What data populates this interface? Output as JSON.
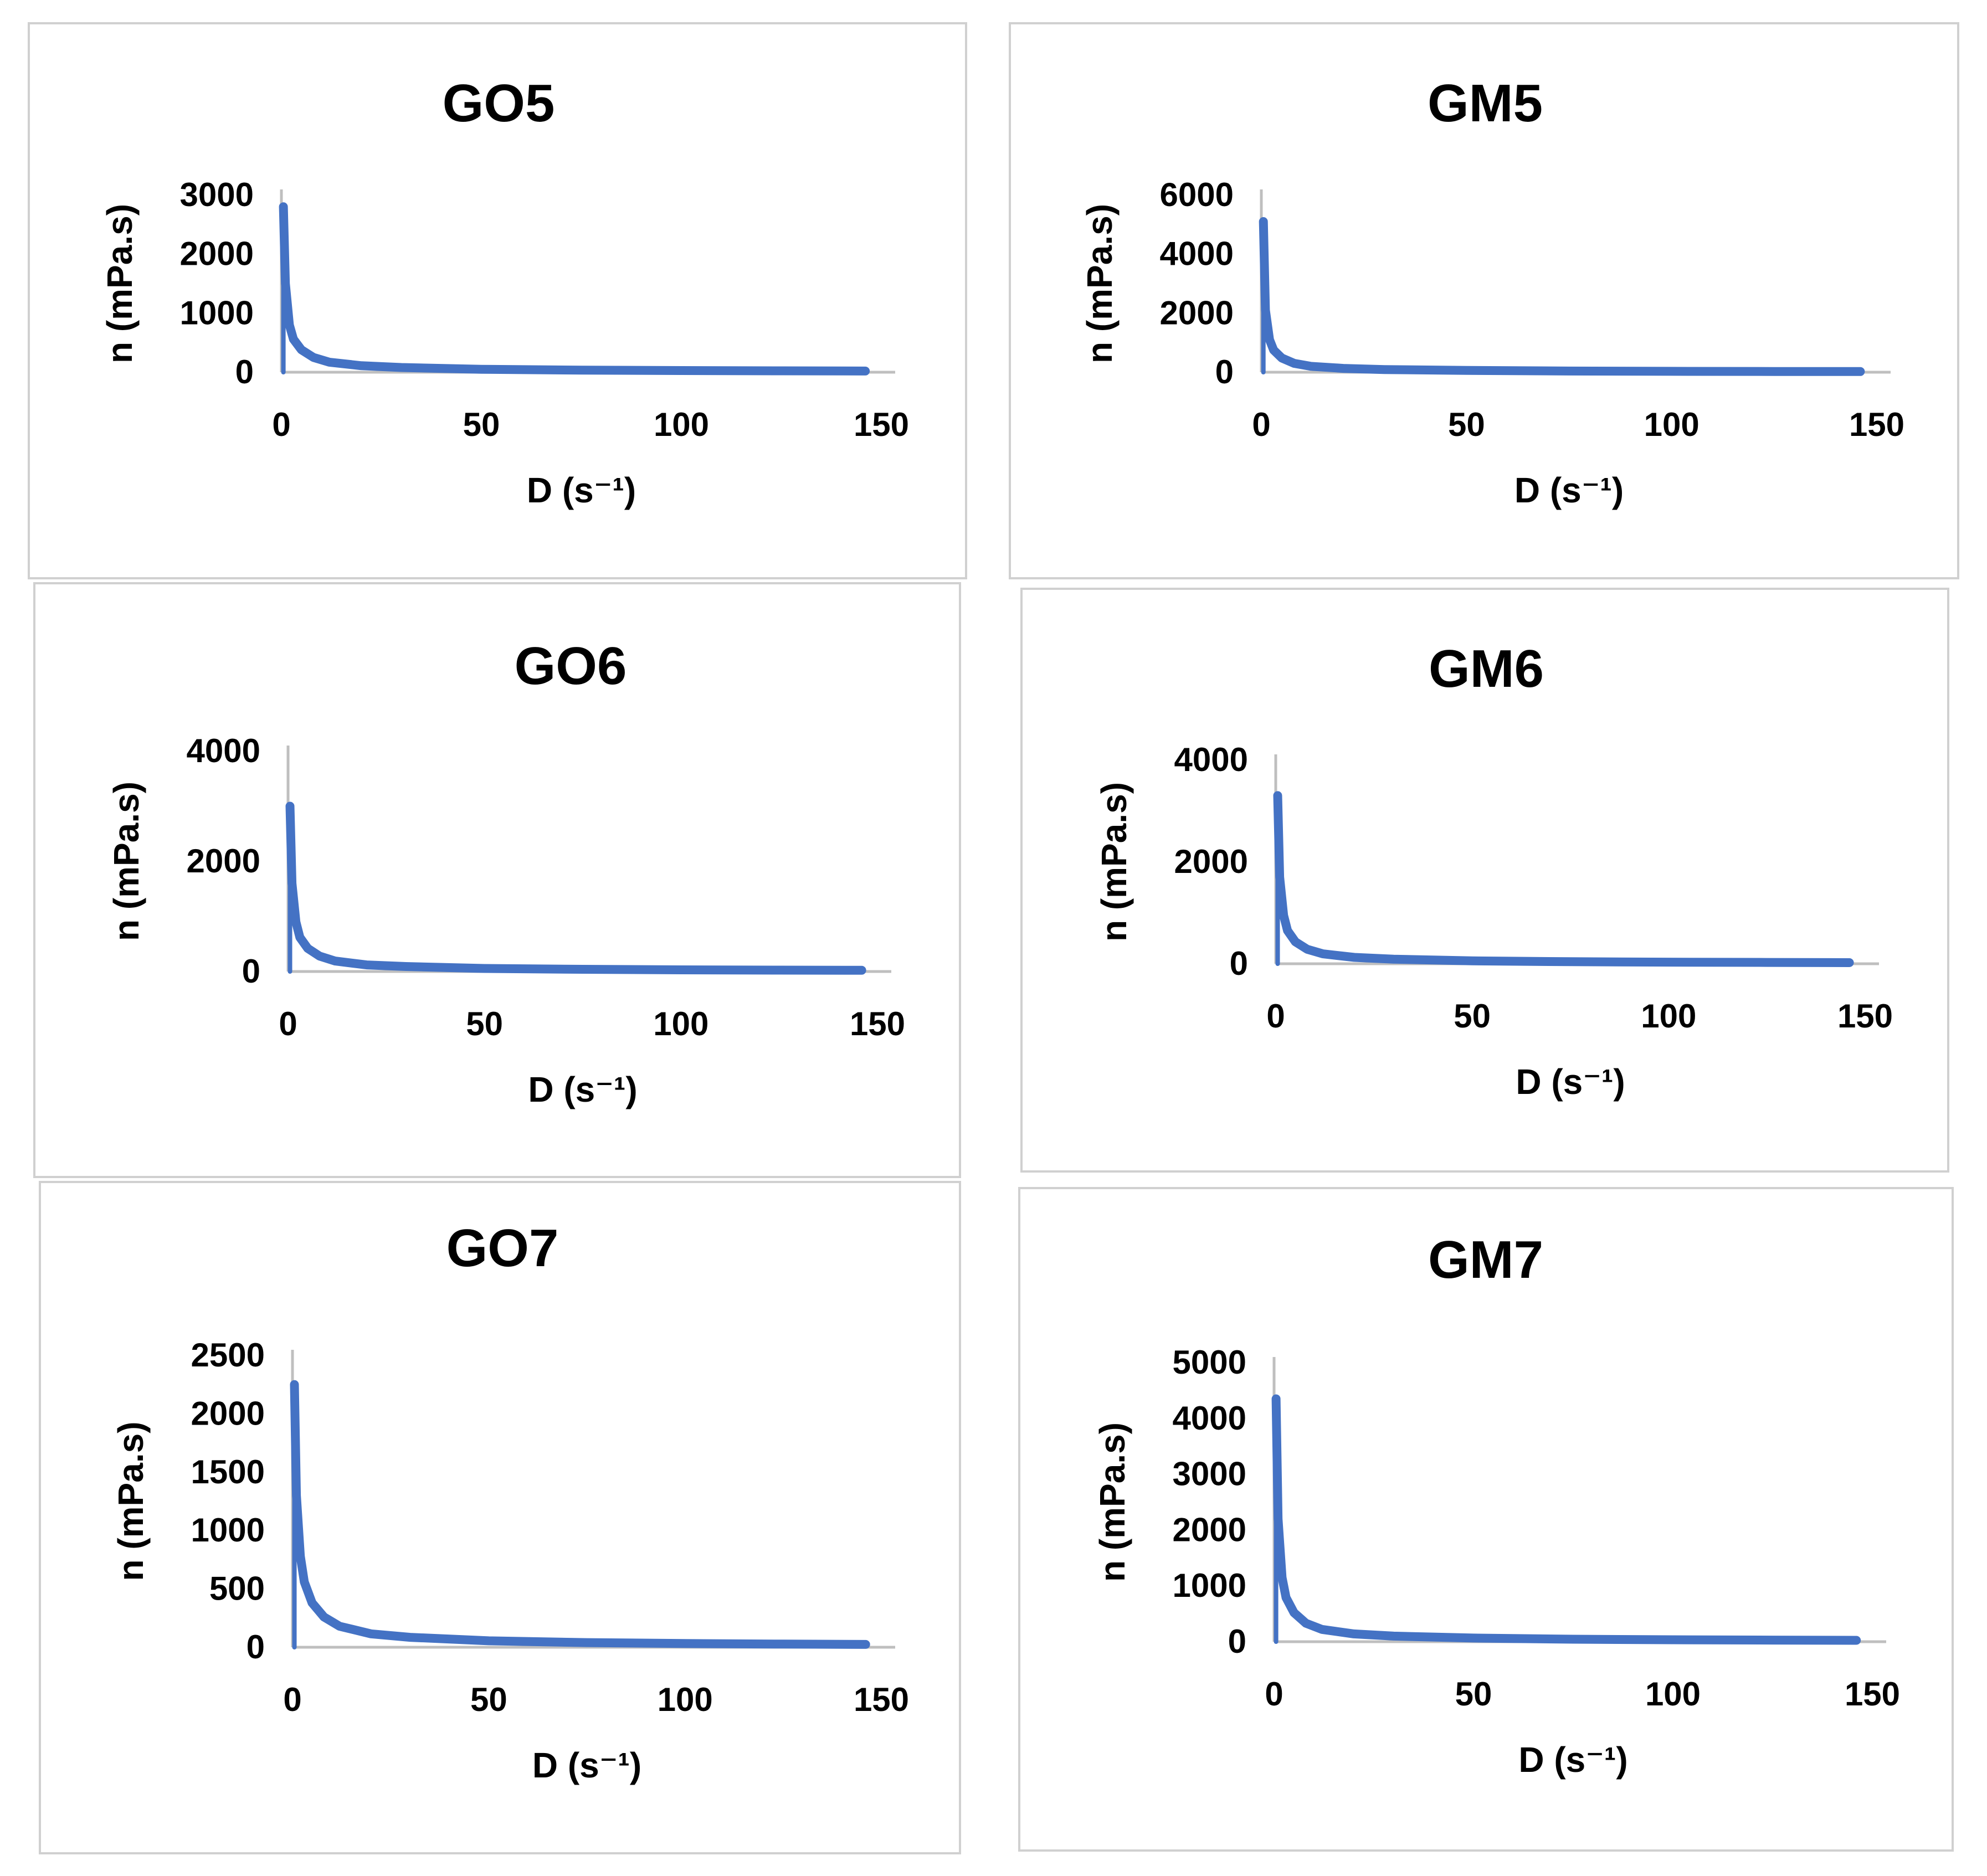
{
  "series_color": "#4472c4",
  "chart_data": [
    {
      "type": "line",
      "title": "GO5",
      "xlabel": "D (s⁻¹)",
      "ylabel": "n (mPa.s)",
      "xlim": [
        0,
        150
      ],
      "ylim": [
        0,
        3000
      ],
      "x_ticks": [
        "0",
        "50",
        "100",
        "150"
      ],
      "y_ticks": [
        "0",
        "1000",
        "2000",
        "3000"
      ],
      "x": [
        0.5,
        1,
        2,
        3,
        5,
        8,
        12,
        20,
        30,
        50,
        75,
        100,
        125,
        146
      ],
      "y": [
        2800,
        1500,
        800,
        560,
        380,
        250,
        170,
        110,
        80,
        50,
        35,
        28,
        23,
        20
      ]
    },
    {
      "type": "line",
      "title": "GM5",
      "xlabel": "D (s⁻¹)",
      "ylabel": "n (mPa.s)",
      "xlim": [
        0,
        150
      ],
      "ylim": [
        0,
        6000
      ],
      "x_ticks": [
        "0",
        "50",
        "100",
        "150"
      ],
      "y_ticks": [
        "0",
        "2000",
        "4000",
        "6000"
      ],
      "x": [
        0.5,
        1,
        2,
        3,
        5,
        8,
        12,
        20,
        30,
        50,
        75,
        100,
        125,
        146
      ],
      "y": [
        5100,
        2100,
        1100,
        750,
        480,
        300,
        200,
        130,
        90,
        60,
        40,
        30,
        25,
        22
      ]
    },
    {
      "type": "line",
      "title": "GO6",
      "xlabel": "D (s⁻¹)",
      "ylabel": "n (mPa.s)",
      "xlim": [
        0,
        150
      ],
      "ylim": [
        0,
        4000
      ],
      "x_ticks": [
        "0",
        "50",
        "100",
        "150"
      ],
      "y_ticks": [
        "0",
        "2000",
        "4000"
      ],
      "x": [
        0.5,
        1,
        2,
        3,
        5,
        8,
        12,
        20,
        30,
        50,
        75,
        100,
        125,
        146
      ],
      "y": [
        3000,
        1600,
        900,
        620,
        420,
        280,
        190,
        120,
        90,
        55,
        40,
        30,
        25,
        22
      ]
    },
    {
      "type": "line",
      "title": "GM6",
      "xlabel": "D (s⁻¹)",
      "ylabel": "n (mPa.s)",
      "xlim": [
        0,
        150
      ],
      "ylim": [
        0,
        4000
      ],
      "x_ticks": [
        "0",
        "50",
        "100",
        "150"
      ],
      "y_ticks": [
        "0",
        "2000",
        "4000"
      ],
      "x": [
        0.5,
        1,
        2,
        3,
        5,
        8,
        12,
        20,
        30,
        50,
        75,
        100,
        125,
        146
      ],
      "y": [
        3300,
        1700,
        950,
        650,
        430,
        285,
        195,
        125,
        90,
        56,
        40,
        31,
        26,
        22
      ]
    },
    {
      "type": "line",
      "title": "GO7",
      "xlabel": "D (s⁻¹)",
      "ylabel": "n (mPa.s)",
      "xlim": [
        0,
        150
      ],
      "ylim": [
        0,
        2500
      ],
      "x_ticks": [
        "0",
        "50",
        "100",
        "150"
      ],
      "y_ticks": [
        "0",
        "500",
        "1000",
        "1500",
        "2000",
        "2500"
      ],
      "x": [
        0.5,
        1,
        2,
        3,
        5,
        8,
        12,
        20,
        30,
        50,
        75,
        100,
        125,
        146
      ],
      "y": [
        2250,
        1300,
        780,
        560,
        380,
        260,
        180,
        115,
        85,
        55,
        40,
        32,
        27,
        24
      ]
    },
    {
      "type": "line",
      "title": "GM7",
      "xlabel": "D (s⁻¹)",
      "ylabel": "n (mPa.s)",
      "xlim": [
        0,
        150
      ],
      "ylim": [
        0,
        5000
      ],
      "x_ticks": [
        "0",
        "50",
        "100",
        "150"
      ],
      "y_ticks": [
        "0",
        "1000",
        "2000",
        "3000",
        "4000",
        "5000"
      ],
      "x": [
        0.5,
        1,
        2,
        3,
        5,
        8,
        12,
        20,
        30,
        50,
        75,
        100,
        125,
        146
      ],
      "y": [
        4350,
        2200,
        1150,
        790,
        520,
        330,
        220,
        140,
        100,
        65,
        45,
        35,
        29,
        25
      ]
    }
  ]
}
